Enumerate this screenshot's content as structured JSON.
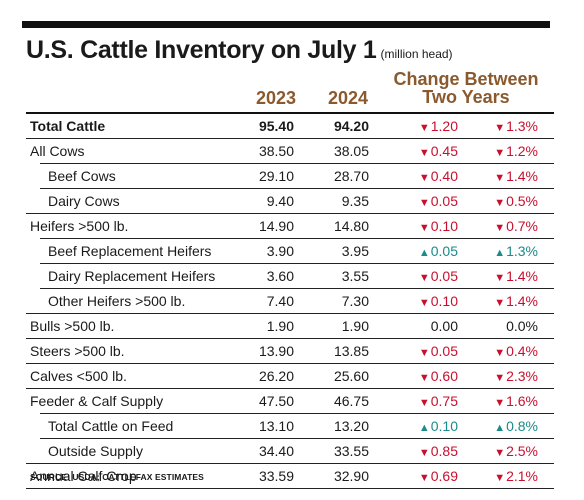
{
  "title": "U.S. Cattle Inventory on July 1",
  "title_unit": "(million head)",
  "headers": {
    "y2023": "2023",
    "y2024": "2024",
    "change_line1": "Change Between",
    "change_line2": "Two Years"
  },
  "colors": {
    "down": "#c8102e",
    "up": "#1a8a8a",
    "header": "#8a5a2e"
  },
  "rows": [
    {
      "label": "Total Cattle",
      "v2023": "95.40",
      "v2024": "94.20",
      "chg": "1.20",
      "pct": "1.3%",
      "dir": "down",
      "bold": true,
      "indent": false
    },
    {
      "label": "All Cows",
      "v2023": "38.50",
      "v2024": "38.05",
      "chg": "0.45",
      "pct": "1.2%",
      "dir": "down",
      "bold": false,
      "indent": false
    },
    {
      "label": "Beef Cows",
      "v2023": "29.10",
      "v2024": "28.70",
      "chg": "0.40",
      "pct": "1.4%",
      "dir": "down",
      "bold": false,
      "indent": true
    },
    {
      "label": "Dairy Cows",
      "v2023": "9.40",
      "v2024": "9.35",
      "chg": "0.05",
      "pct": "0.5%",
      "dir": "down",
      "bold": false,
      "indent": true
    },
    {
      "label": "Heifers >500 lb.",
      "v2023": "14.90",
      "v2024": "14.80",
      "chg": "0.10",
      "pct": "0.7%",
      "dir": "down",
      "bold": false,
      "indent": false
    },
    {
      "label": "Beef Replacement Heifers",
      "v2023": "3.90",
      "v2024": "3.95",
      "chg": "0.05",
      "pct": "1.3%",
      "dir": "up",
      "bold": false,
      "indent": true
    },
    {
      "label": "Dairy Replacement Heifers",
      "v2023": "3.60",
      "v2024": "3.55",
      "chg": "0.05",
      "pct": "1.4%",
      "dir": "down",
      "bold": false,
      "indent": true
    },
    {
      "label": "Other Heifers >500 lb.",
      "v2023": "7.40",
      "v2024": "7.30",
      "chg": "0.10",
      "pct": "1.4%",
      "dir": "down",
      "bold": false,
      "indent": true
    },
    {
      "label": "Bulls >500 lb.",
      "v2023": "1.90",
      "v2024": "1.90",
      "chg": "0.00",
      "pct": "0.0%",
      "dir": "flat",
      "bold": false,
      "indent": false
    },
    {
      "label": "Steers >500 lb.",
      "v2023": "13.90",
      "v2024": "13.85",
      "chg": "0.05",
      "pct": "0.4%",
      "dir": "down",
      "bold": false,
      "indent": false
    },
    {
      "label": "Calves <500 lb.",
      "v2023": "26.20",
      "v2024": "25.60",
      "chg": "0.60",
      "pct": "2.3%",
      "dir": "down",
      "bold": false,
      "indent": false
    },
    {
      "label": "Feeder & Calf Supply",
      "v2023": "47.50",
      "v2024": "46.75",
      "chg": "0.75",
      "pct": "1.6%",
      "dir": "down",
      "bold": false,
      "indent": false
    },
    {
      "label": "Total Cattle on Feed",
      "v2023": "13.10",
      "v2024": "13.20",
      "chg": "0.10",
      "pct": "0.8%",
      "dir": "up",
      "bold": false,
      "indent": true
    },
    {
      "label": "Outside Supply",
      "v2023": "34.40",
      "v2024": "33.55",
      "chg": "0.85",
      "pct": "2.5%",
      "dir": "down",
      "bold": false,
      "indent": true
    },
    {
      "label": "Annual Calf Crop",
      "v2023": "33.59",
      "v2024": "32.90",
      "chg": "0.69",
      "pct": "2.1%",
      "dir": "down",
      "bold": false,
      "indent": false
    }
  ],
  "source": "SOURCE: USDA; CATTLEFAX ESTIMATES"
}
